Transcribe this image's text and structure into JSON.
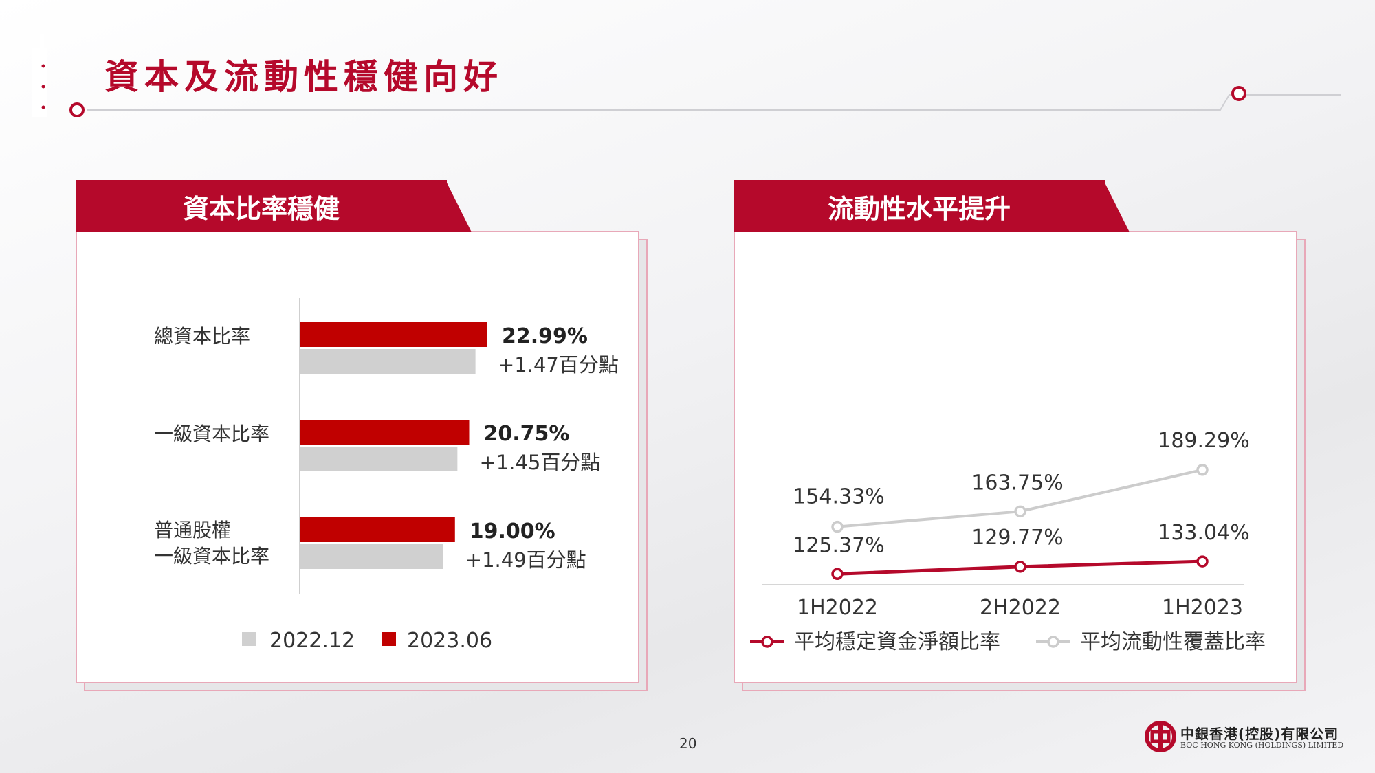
{
  "title": "資本及流動性穩健向好",
  "page_number": "20",
  "logo": {
    "zh": "中銀香港(控股)有限公司",
    "en": "BOC HONG KONG (HOLDINGS) LIMITED"
  },
  "colors": {
    "brand_red": "#b5092b",
    "bar_red": "#c00000",
    "bar_grey": "#d0d0d0",
    "line_grey": "#cccccc"
  },
  "panels": {
    "capital": {
      "heading": "資本比率穩健"
    },
    "liquidity": {
      "heading": "流動性水平提升"
    }
  },
  "chart_data": [
    {
      "type": "bar",
      "orientation": "horizontal",
      "categories": [
        "總資本比率",
        "一級資本比率",
        "普通股權\n一級資本比率"
      ],
      "series": [
        {
          "name": "2022.12",
          "values": [
            21.52,
            19.3,
            17.51
          ],
          "color": "#d0d0d0"
        },
        {
          "name": "2023.06",
          "values": [
            22.99,
            20.75,
            19.0
          ],
          "color": "#c00000"
        }
      ],
      "data_labels": [
        "22.99%",
        "20.75%",
        "19.00%"
      ],
      "change_labels": [
        "+1.47百分點",
        "+1.45百分點",
        "+1.49百分點"
      ],
      "legend": [
        "2022.12",
        "2023.06"
      ],
      "legend_placement": "bottom",
      "xlim": [
        0,
        26
      ]
    },
    {
      "type": "line",
      "x": [
        "1H2022",
        "2H2022",
        "1H2023"
      ],
      "series": [
        {
          "name": "平均穩定資金淨額比率",
          "values": [
            125.37,
            129.77,
            133.04
          ],
          "labels": [
            "125.37%",
            "129.77%",
            "133.04%"
          ],
          "color": "#b5092b"
        },
        {
          "name": "平均流動性覆蓋比率",
          "values": [
            154.33,
            163.75,
            189.29
          ],
          "labels": [
            "154.33%",
            "163.75%",
            "189.29%"
          ],
          "color": "#cccccc"
        }
      ],
      "legend_placement": "bottom",
      "ylim": [
        50,
        230
      ]
    }
  ]
}
